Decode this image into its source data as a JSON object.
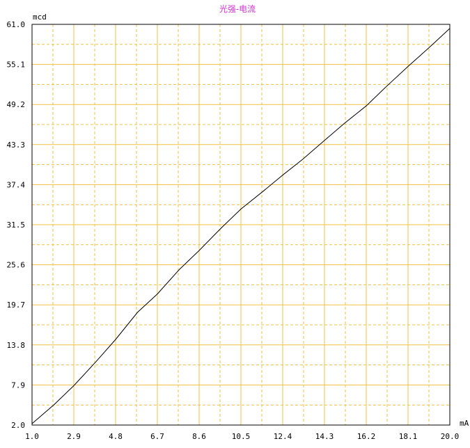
{
  "chart_data": {
    "type": "line",
    "title": "光强-电流",
    "xlabel": "mA",
    "ylabel": "mcd",
    "xlim": [
      1.0,
      20.0
    ],
    "ylim": [
      2.0,
      61.0
    ],
    "x_ticks": [
      "1.0",
      "2.9",
      "4.8",
      "6.7",
      "8.6",
      "10.5",
      "12.4",
      "14.3",
      "16.2",
      "18.1",
      "20.0"
    ],
    "y_ticks": [
      "2.0",
      "7.9",
      "13.8",
      "19.7",
      "25.6",
      "31.5",
      "37.4",
      "43.3",
      "49.2",
      "55.1",
      "61.0"
    ],
    "grid": true,
    "grid_color": "#f0c040",
    "line_color": "#000000",
    "title_color": "#cc33cc",
    "series": [
      {
        "x": [
          1.0,
          2.0,
          2.9,
          3.9,
          4.8,
          5.8,
          6.7,
          7.7,
          8.6,
          9.6,
          10.5,
          11.5,
          12.4,
          13.3,
          14.3,
          15.2,
          16.2,
          17.1,
          18.1,
          19.0,
          20.0
        ],
        "y": [
          2.2,
          5.0,
          7.8,
          11.3,
          14.6,
          18.6,
          21.3,
          24.9,
          27.7,
          31.0,
          33.8,
          36.4,
          38.8,
          41.1,
          43.9,
          46.4,
          49.0,
          51.8,
          54.8,
          57.4,
          60.4
        ]
      }
    ]
  }
}
